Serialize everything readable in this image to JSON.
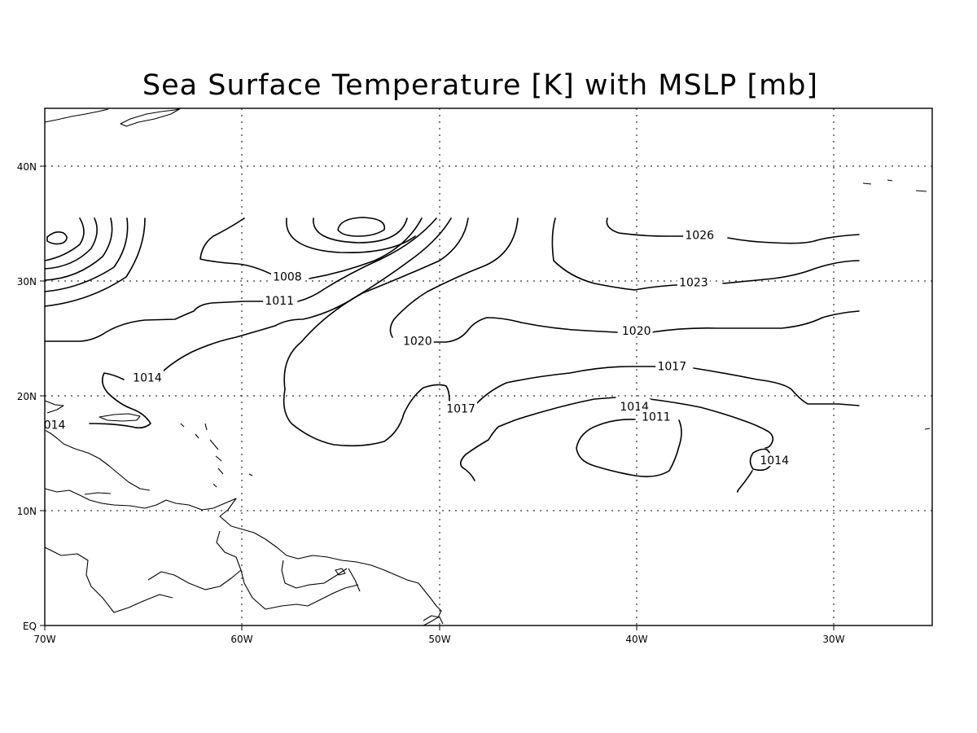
{
  "map": {
    "title": "Sea Surface Temperature [K] with MSLP [mb]",
    "x_ticks": [
      "70W",
      "60W",
      "50W",
      "40W",
      "30W"
    ],
    "y_ticks": [
      "EQ",
      "10N",
      "20N",
      "30N",
      "40N"
    ],
    "grid": true,
    "contour_labels": [
      {
        "text": "1008",
        "lon": -57.7,
        "lat": 30.3
      },
      {
        "text": "1011",
        "lon": -58.1,
        "lat": 28.2
      },
      {
        "text": "1014",
        "lon": -64.8,
        "lat": 21.5
      },
      {
        "text": "014",
        "lon": -69.5,
        "lat": 17.4
      },
      {
        "text": "1020",
        "lon": -51.1,
        "lat": 24.7
      },
      {
        "text": "1017",
        "lon": -48.9,
        "lat": 18.8
      },
      {
        "text": "1026",
        "lon": -36.8,
        "lat": 33.9
      },
      {
        "text": "1023",
        "lon": -37.1,
        "lat": 29.8
      },
      {
        "text": "1020",
        "lon": -40.0,
        "lat": 25.6
      },
      {
        "text": "1017",
        "lon": -38.2,
        "lat": 22.5
      },
      {
        "text": "1014",
        "lon": -40.1,
        "lat": 19.0
      },
      {
        "text": "1011",
        "lon": -39.0,
        "lat": 18.1
      },
      {
        "text": "1014",
        "lon": -33.0,
        "lat": 14.3
      }
    ]
  }
}
